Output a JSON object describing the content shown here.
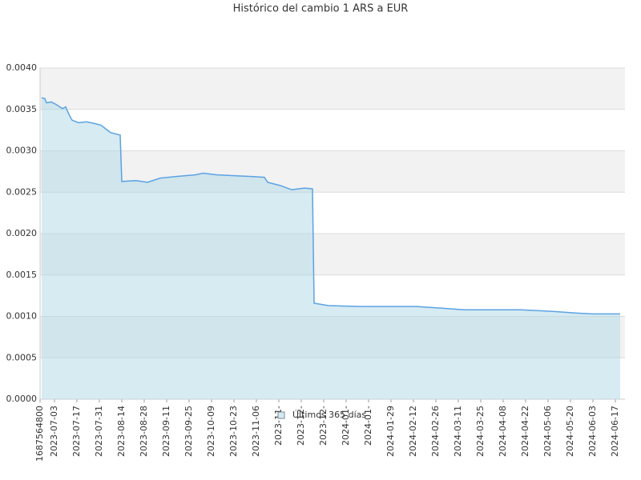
{
  "chart_data": {
    "type": "area",
    "title": "Histórico del cambio 1 ARS a EUR",
    "x": [
      "2023-06-25",
      "2023-06-27",
      "2023-06-28",
      "2023-07-01",
      "2023-07-04",
      "2023-07-08",
      "2023-07-10",
      "2023-07-12",
      "2023-07-14",
      "2023-07-18",
      "2023-07-23",
      "2023-07-28",
      "2023-08-01",
      "2023-08-05",
      "2023-08-07",
      "2023-08-13",
      "2023-08-14",
      "2023-08-23",
      "2023-08-30",
      "2023-09-07",
      "2023-09-17",
      "2023-09-29",
      "2023-10-04",
      "2023-10-12",
      "2023-10-22",
      "2023-11-03",
      "2023-11-11",
      "2023-11-13",
      "2023-11-21",
      "2023-11-28",
      "2023-12-06",
      "2023-12-11",
      "2023-12-12",
      "2023-12-21",
      "2024-01-10",
      "2024-02-04",
      "2024-02-14",
      "2024-02-29",
      "2024-03-15",
      "2024-04-04",
      "2024-04-19",
      "2024-05-09",
      "2024-05-24",
      "2024-06-03",
      "2024-06-20"
    ],
    "series": [
      {
        "name": "Últimos 365 días",
        "color": "#5ba3e3",
        "values": [
          0.00364,
          0.00363,
          0.00358,
          0.00359,
          0.00356,
          0.00351,
          0.00353,
          0.00344,
          0.00337,
          0.00334,
          0.00335,
          0.00333,
          0.00331,
          0.00325,
          0.00322,
          0.00319,
          0.00263,
          0.00264,
          0.00262,
          0.00267,
          0.00269,
          0.00271,
          0.00273,
          0.00271,
          0.0027,
          0.00269,
          0.00268,
          0.00262,
          0.00258,
          0.00253,
          0.00255,
          0.00254,
          0.00116,
          0.00113,
          0.00112,
          0.00112,
          0.00112,
          0.0011,
          0.00108,
          0.00108,
          0.00108,
          0.00106,
          0.00104,
          0.00103,
          0.00103
        ]
      }
    ],
    "xlim": [
      "2023-06-24",
      "2024-06-23"
    ],
    "xticks": [
      {
        "value": "2023-06-24",
        "label": "1687564800"
      },
      "2023-07-03",
      "2023-07-17",
      "2023-07-31",
      "2023-08-14",
      "2023-08-28",
      "2023-09-11",
      "2023-09-25",
      "2023-10-09",
      "2023-10-23",
      "2023-11-06",
      {
        "value": "2023-11-20",
        "label": "2023-11-"
      },
      {
        "value": "2023-12-04",
        "label": "2023-12-"
      },
      {
        "value": "2023-12-18",
        "label": "2023-12-"
      },
      {
        "value": "2024-01-01",
        "label": "2024-01-"
      },
      {
        "value": "2024-01-15",
        "label": "2024-01-"
      },
      "2024-01-29",
      "2024-02-12",
      "2024-02-26",
      "2024-03-11",
      "2024-03-25",
      "2024-04-08",
      "2024-04-22",
      "2024-05-06",
      "2024-05-20",
      "2024-06-03",
      "2024-06-17"
    ],
    "ylim": [
      0,
      0.004
    ],
    "yticks": [
      {
        "value": 0,
        "label": "0.0000"
      },
      {
        "value": 0.0005,
        "label": "0.0005"
      },
      {
        "value": 0.001,
        "label": "0.0010"
      },
      {
        "value": 0.0015,
        "label": "0.0015"
      },
      {
        "value": 0.002,
        "label": "0.0020"
      },
      {
        "value": 0.0025,
        "label": "0.0025"
      },
      {
        "value": 0.003,
        "label": "0.0030"
      },
      {
        "value": 0.0035,
        "label": "0.0035"
      },
      {
        "value": 0.004,
        "label": "0.0040"
      }
    ],
    "grid": true
  }
}
